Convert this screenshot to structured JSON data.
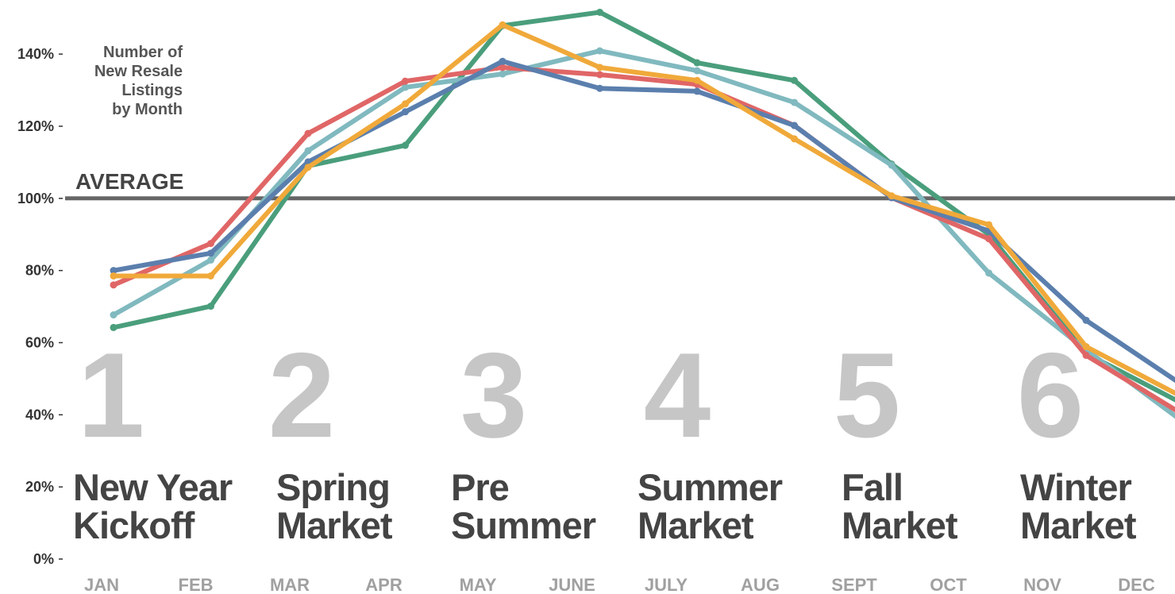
{
  "chart_data": {
    "type": "line",
    "title": [
      "Number of",
      "New Resale",
      "Listings",
      "by Month"
    ],
    "categories": [
      "JAN",
      "FEB",
      "MAR",
      "APR",
      "MAY",
      "JUNE",
      "JULY",
      "AUG",
      "SEPT",
      "OCT",
      "NOV",
      "DEC"
    ],
    "series": [
      {
        "color": "#4a9e7c",
        "values": [
          64.2,
          70.1,
          109,
          114.7,
          147.9,
          151.6,
          137.6,
          132.7,
          109.5,
          90,
          57,
          43
        ]
      },
      {
        "color": "#80b9bf",
        "values": [
          67.7,
          82.9,
          113.2,
          130.8,
          134.5,
          140.9,
          135.4,
          126.6,
          109.2,
          79.3,
          58,
          38
        ]
      },
      {
        "color": "#e06666",
        "values": [
          76,
          87.5,
          118,
          132.5,
          136.3,
          134.3,
          131.6,
          120.2,
          100.2,
          88.8,
          56.5,
          40
        ]
      },
      {
        "color": "#5b7fad",
        "values": [
          80,
          84.8,
          110.1,
          124,
          138,
          130.5,
          129.7,
          120.2,
          100.2,
          91,
          66.2,
          48.1
        ]
      },
      {
        "color": "#f0a93a",
        "values": [
          78.5,
          78.5,
          108.6,
          126.2,
          148.1,
          136.3,
          132.7,
          116.5,
          100.7,
          92.7,
          58.9,
          44.8
        ]
      }
    ],
    "ylim": [
      0,
      155
    ],
    "yticks": [
      {
        "value": 0,
        "label": "0%"
      },
      {
        "value": 20,
        "label": "20%"
      },
      {
        "value": 40,
        "label": "40%"
      },
      {
        "value": 60,
        "label": "60%"
      },
      {
        "value": 80,
        "label": "80%"
      },
      {
        "value": 100,
        "label": "100%"
      },
      {
        "value": 120,
        "label": "120%"
      },
      {
        "value": 140,
        "label": "140%"
      }
    ],
    "reference_line": {
      "value": 100,
      "label": "AVERAGE",
      "color": "#666666"
    },
    "phases": [
      {
        "number": "1",
        "label": [
          "New Year",
          "Kickoff"
        ]
      },
      {
        "number": "2",
        "label": [
          "Spring",
          "Market"
        ]
      },
      {
        "number": "3",
        "label": [
          "Pre",
          "Summer"
        ]
      },
      {
        "number": "4",
        "label": [
          "Summer",
          "Market"
        ]
      },
      {
        "number": "5",
        "label": [
          "Fall",
          "Market"
        ]
      },
      {
        "number": "6",
        "label": [
          "Winter",
          "Market"
        ]
      }
    ]
  }
}
